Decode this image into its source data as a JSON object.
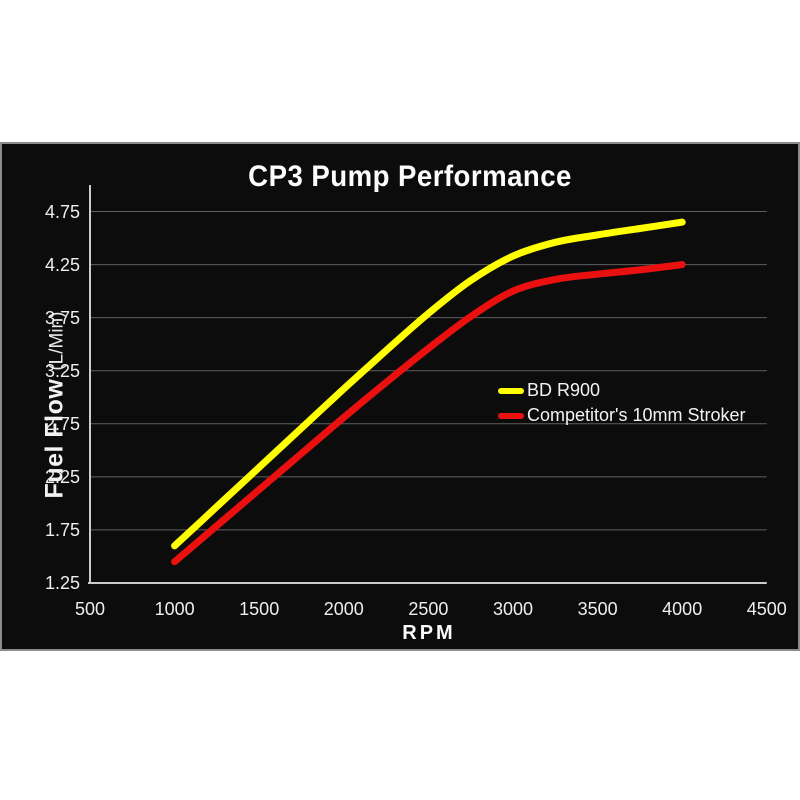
{
  "page": {
    "background": "#ffffff",
    "panel_background": "#0c0c0c",
    "panel_border": "#8c8c8c"
  },
  "chart_data": {
    "type": "line",
    "title": "CP3 Pump Performance",
    "xlabel": "RPM",
    "ylabel": "Fuel Flow",
    "ylabel_units": "(L/Min)",
    "grid": "horizontal-only",
    "gridline_color": "#5f5f5f",
    "axis_line_color": "#cccccc",
    "text_color": "#eeeeee",
    "legend_position": "middle-right-inside",
    "xlim": [
      500,
      4500
    ],
    "ylim": [
      1.25,
      5.0
    ],
    "x_ticks": [
      "500",
      "1000",
      "1500",
      "2000",
      "2500",
      "3000",
      "3500",
      "4000",
      "4500"
    ],
    "y_ticks": [
      "1.25",
      "1.75",
      "2.25",
      "2.75",
      "3.25",
      "3.75",
      "4.25",
      "4.75"
    ],
    "series": [
      {
        "name": "BD R900",
        "color": "#ffff00",
        "x": [
          1000,
          1250,
          1500,
          1750,
          2000,
          2250,
          2500,
          2750,
          3000,
          3250,
          3500,
          3750,
          4000
        ],
        "values": [
          1.6,
          1.97,
          2.34,
          2.71,
          3.08,
          3.44,
          3.79,
          4.1,
          4.33,
          4.46,
          4.53,
          4.59,
          4.65
        ]
      },
      {
        "name": "Competitor's 10mm Stroker",
        "color": "#ea1010",
        "x": [
          1000,
          1250,
          1500,
          1750,
          2000,
          2250,
          2500,
          2750,
          3000,
          3250,
          3500,
          3750,
          4000
        ],
        "values": [
          1.45,
          1.79,
          2.13,
          2.47,
          2.81,
          3.14,
          3.46,
          3.76,
          4.0,
          4.11,
          4.16,
          4.2,
          4.25
        ]
      }
    ]
  }
}
